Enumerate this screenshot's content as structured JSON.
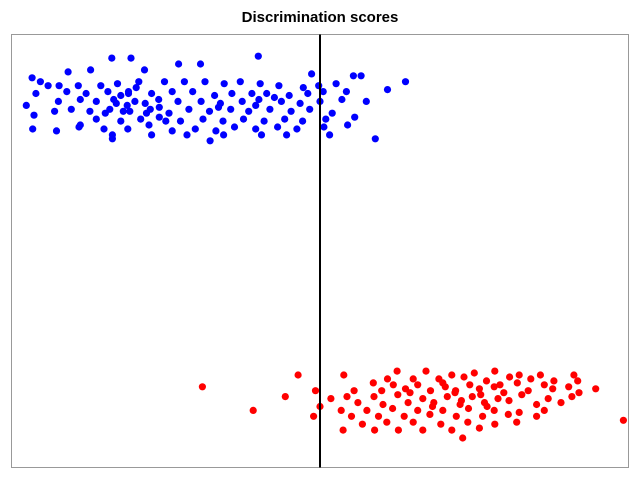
{
  "chart_data": {
    "type": "scatter",
    "title": "Discrimination scores",
    "xlabel": "",
    "ylabel": "",
    "grid": false,
    "legend": "none",
    "xlim": [
      -4.8,
      4.8
    ],
    "ylim": [
      -1.1,
      1.1
    ],
    "reference_line": {
      "x": 0.0,
      "color": "#000000"
    },
    "series": [
      {
        "color": "#0000ff",
        "points": [
          {
            "x": -3.24,
            "y": 0.98
          },
          {
            "x": -2.94,
            "y": 0.98
          },
          {
            "x": -0.96,
            "y": 0.99
          },
          {
            "x": -2.2,
            "y": 0.95
          },
          {
            "x": -1.86,
            "y": 0.95
          },
          {
            "x": -3.57,
            "y": 0.92
          },
          {
            "x": -4.48,
            "y": 0.88
          },
          {
            "x": -3.92,
            "y": 0.91
          },
          {
            "x": -2.73,
            "y": 0.92
          },
          {
            "x": -0.13,
            "y": 0.9
          },
          {
            "x": 0.52,
            "y": 0.89
          },
          {
            "x": 0.64,
            "y": 0.89
          },
          {
            "x": 1.33,
            "y": 0.86
          },
          {
            "x": -4.35,
            "y": 0.86
          },
          {
            "x": -4.23,
            "y": 0.84
          },
          {
            "x": -4.06,
            "y": 0.84
          },
          {
            "x": -3.76,
            "y": 0.84
          },
          {
            "x": -3.41,
            "y": 0.84
          },
          {
            "x": -3.15,
            "y": 0.85
          },
          {
            "x": -2.82,
            "y": 0.86
          },
          {
            "x": -2.42,
            "y": 0.86
          },
          {
            "x": -2.11,
            "y": 0.86
          },
          {
            "x": -1.79,
            "y": 0.86
          },
          {
            "x": -1.49,
            "y": 0.85
          },
          {
            "x": -1.24,
            "y": 0.86
          },
          {
            "x": -0.93,
            "y": 0.85
          },
          {
            "x": -0.64,
            "y": 0.84
          },
          {
            "x": -0.26,
            "y": 0.83
          },
          {
            "x": -0.02,
            "y": 0.84
          },
          {
            "x": 0.25,
            "y": 0.85
          },
          {
            "x": -4.42,
            "y": 0.8
          },
          {
            "x": -3.94,
            "y": 0.81
          },
          {
            "x": -3.64,
            "y": 0.8
          },
          {
            "x": -3.3,
            "y": 0.81
          },
          {
            "x": -2.98,
            "y": 0.8
          },
          {
            "x": -2.62,
            "y": 0.8
          },
          {
            "x": -2.3,
            "y": 0.81
          },
          {
            "x": -1.98,
            "y": 0.81
          },
          {
            "x": -1.64,
            "y": 0.79
          },
          {
            "x": -1.37,
            "y": 0.8
          },
          {
            "x": -1.06,
            "y": 0.8
          },
          {
            "x": -0.83,
            "y": 0.8
          },
          {
            "x": -0.48,
            "y": 0.79
          },
          {
            "x": -0.19,
            "y": 0.8
          },
          {
            "x": 0.05,
            "y": 0.81
          },
          {
            "x": 0.41,
            "y": 0.81
          },
          {
            "x": 1.05,
            "y": 0.82
          },
          {
            "x": -4.07,
            "y": 0.76
          },
          {
            "x": -3.73,
            "y": 0.77
          },
          {
            "x": -3.48,
            "y": 0.76
          },
          {
            "x": -3.17,
            "y": 0.75
          },
          {
            "x": -2.88,
            "y": 0.76
          },
          {
            "x": -2.51,
            "y": 0.77
          },
          {
            "x": -2.21,
            "y": 0.76
          },
          {
            "x": -1.85,
            "y": 0.76
          },
          {
            "x": -1.55,
            "y": 0.75
          },
          {
            "x": -1.21,
            "y": 0.76
          },
          {
            "x": -0.95,
            "y": 0.77
          },
          {
            "x": -0.6,
            "y": 0.76
          },
          {
            "x": -0.31,
            "y": 0.75
          },
          {
            "x": 0.0,
            "y": 0.76
          },
          {
            "x": 0.34,
            "y": 0.77
          },
          {
            "x": 0.72,
            "y": 0.76
          },
          {
            "x": -3.87,
            "y": 0.72
          },
          {
            "x": -3.58,
            "y": 0.71
          },
          {
            "x": -3.27,
            "y": 0.72
          },
          {
            "x": -2.96,
            "y": 0.71
          },
          {
            "x": -2.64,
            "y": 0.72
          },
          {
            "x": -2.35,
            "y": 0.7
          },
          {
            "x": -2.04,
            "y": 0.72
          },
          {
            "x": -1.72,
            "y": 0.71
          },
          {
            "x": -1.39,
            "y": 0.72
          },
          {
            "x": -1.11,
            "y": 0.71
          },
          {
            "x": -0.78,
            "y": 0.72
          },
          {
            "x": -0.45,
            "y": 0.71
          },
          {
            "x": -0.16,
            "y": 0.72
          },
          {
            "x": 0.19,
            "y": 0.7
          },
          {
            "x": -4.45,
            "y": 0.69
          },
          {
            "x": -3.48,
            "y": 0.67
          },
          {
            "x": -3.1,
            "y": 0.66
          },
          {
            "x": -2.79,
            "y": 0.67
          },
          {
            "x": -2.5,
            "y": 0.68
          },
          {
            "x": -2.17,
            "y": 0.66
          },
          {
            "x": -1.82,
            "y": 0.67
          },
          {
            "x": -1.51,
            "y": 0.66
          },
          {
            "x": -1.19,
            "y": 0.67
          },
          {
            "x": -0.87,
            "y": 0.66
          },
          {
            "x": -0.55,
            "y": 0.67
          },
          {
            "x": -0.27,
            "y": 0.66
          },
          {
            "x": 0.09,
            "y": 0.67
          },
          {
            "x": 0.54,
            "y": 0.68
          },
          {
            "x": -3.06,
            "y": 0.71
          },
          {
            "x": -2.98,
            "y": 0.81
          },
          {
            "x": -3.21,
            "y": 0.77
          },
          {
            "x": -2.72,
            "y": 0.75
          },
          {
            "x": -3.34,
            "y": 0.7
          },
          {
            "x": -2.86,
            "y": 0.83
          },
          {
            "x": -1.58,
            "y": 0.73
          },
          {
            "x": -1.0,
            "y": 0.74
          },
          {
            "x": -0.71,
            "y": 0.78
          },
          {
            "x": -4.57,
            "y": 0.74
          },
          {
            "x": -4.13,
            "y": 0.71
          },
          {
            "x": -3.73,
            "y": 0.64
          },
          {
            "x": -3.36,
            "y": 0.62
          },
          {
            "x": -2.99,
            "y": 0.62
          },
          {
            "x": -2.66,
            "y": 0.64
          },
          {
            "x": -2.3,
            "y": 0.61
          },
          {
            "x": -1.94,
            "y": 0.62
          },
          {
            "x": -1.62,
            "y": 0.61
          },
          {
            "x": -1.33,
            "y": 0.63
          },
          {
            "x": -1.0,
            "y": 0.62
          },
          {
            "x": -0.66,
            "y": 0.63
          },
          {
            "x": -0.36,
            "y": 0.62
          },
          {
            "x": 0.06,
            "y": 0.63
          },
          {
            "x": 0.43,
            "y": 0.64
          },
          {
            "x": -4.47,
            "y": 0.62
          },
          {
            "x": -3.75,
            "y": 0.63
          },
          {
            "x": -3.23,
            "y": 0.59
          },
          {
            "x": -2.62,
            "y": 0.59
          },
          {
            "x": -2.07,
            "y": 0.59
          },
          {
            "x": -1.5,
            "y": 0.59
          },
          {
            "x": -0.91,
            "y": 0.59
          },
          {
            "x": -0.52,
            "y": 0.59
          },
          {
            "x": 0.15,
            "y": 0.59
          },
          {
            "x": -4.1,
            "y": 0.61
          },
          {
            "x": -1.71,
            "y": 0.56
          },
          {
            "x": 0.86,
            "y": 0.57
          },
          {
            "x": -3.23,
            "y": 0.57
          },
          {
            "x": -2.7,
            "y": 0.7
          },
          {
            "x": -3.1,
            "y": 0.79
          },
          {
            "x": -2.5,
            "y": 0.73
          },
          {
            "x": -3.0,
            "y": 0.74
          },
          {
            "x": -2.4,
            "y": 0.66
          }
        ]
      },
      {
        "color": "#ff0000",
        "points": [
          {
            "x": 1.2,
            "y": -0.61
          },
          {
            "x": 1.65,
            "y": -0.61
          },
          {
            "x": 2.05,
            "y": -0.63
          },
          {
            "x": 2.4,
            "y": -0.62
          },
          {
            "x": 2.72,
            "y": -0.61
          },
          {
            "x": 3.1,
            "y": -0.63
          },
          {
            "x": 3.43,
            "y": -0.63
          },
          {
            "x": 3.95,
            "y": -0.63
          },
          {
            "x": -0.34,
            "y": -0.63
          },
          {
            "x": 0.37,
            "y": -0.63
          },
          {
            "x": 1.05,
            "y": -0.65
          },
          {
            "x": 1.45,
            "y": -0.65
          },
          {
            "x": 1.85,
            "y": -0.65
          },
          {
            "x": 2.24,
            "y": -0.64
          },
          {
            "x": 2.59,
            "y": -0.66
          },
          {
            "x": 2.95,
            "y": -0.64
          },
          {
            "x": 3.28,
            "y": -0.65
          },
          {
            "x": 3.64,
            "y": -0.66
          },
          {
            "x": 4.01,
            "y": -0.66
          },
          {
            "x": 0.83,
            "y": -0.67
          },
          {
            "x": 1.14,
            "y": -0.68
          },
          {
            "x": 1.52,
            "y": -0.68
          },
          {
            "x": 1.91,
            "y": -0.67
          },
          {
            "x": 2.33,
            "y": -0.68
          },
          {
            "x": 2.71,
            "y": -0.69
          },
          {
            "x": 3.07,
            "y": -0.67
          },
          {
            "x": 3.49,
            "y": -0.68
          },
          {
            "x": 3.87,
            "y": -0.69
          },
          {
            "x": -1.83,
            "y": -0.69
          },
          {
            "x": 0.53,
            "y": -0.71
          },
          {
            "x": 0.96,
            "y": -0.71
          },
          {
            "x": 1.33,
            "y": -0.7
          },
          {
            "x": 1.72,
            "y": -0.71
          },
          {
            "x": 2.11,
            "y": -0.71
          },
          {
            "x": 2.48,
            "y": -0.7
          },
          {
            "x": 2.86,
            "y": -0.72
          },
          {
            "x": 3.24,
            "y": -0.71
          },
          {
            "x": 3.62,
            "y": -0.7
          },
          {
            "x": 4.03,
            "y": -0.72
          },
          {
            "x": 4.29,
            "y": -0.7
          },
          {
            "x": -0.07,
            "y": -0.71
          },
          {
            "x": -0.54,
            "y": -0.74
          },
          {
            "x": 0.42,
            "y": -0.74
          },
          {
            "x": 0.84,
            "y": -0.74
          },
          {
            "x": 1.21,
            "y": -0.73
          },
          {
            "x": 1.6,
            "y": -0.75
          },
          {
            "x": 1.98,
            "y": -0.74
          },
          {
            "x": 2.37,
            "y": -0.74
          },
          {
            "x": 2.77,
            "y": -0.75
          },
          {
            "x": 3.14,
            "y": -0.73
          },
          {
            "x": 3.55,
            "y": -0.75
          },
          {
            "x": 3.92,
            "y": -0.74
          },
          {
            "x": 0.17,
            "y": -0.75
          },
          {
            "x": 0.59,
            "y": -0.77
          },
          {
            "x": 0.98,
            "y": -0.78
          },
          {
            "x": 1.37,
            "y": -0.77
          },
          {
            "x": 1.77,
            "y": -0.77
          },
          {
            "x": 2.18,
            "y": -0.78
          },
          {
            "x": 2.56,
            "y": -0.77
          },
          {
            "x": 2.94,
            "y": -0.76
          },
          {
            "x": 3.37,
            "y": -0.78
          },
          {
            "x": 3.75,
            "y": -0.77
          },
          {
            "x": 0.0,
            "y": -0.79
          },
          {
            "x": -1.04,
            "y": -0.81
          },
          {
            "x": 0.33,
            "y": -0.81
          },
          {
            "x": 0.73,
            "y": -0.81
          },
          {
            "x": 1.13,
            "y": -0.8
          },
          {
            "x": 1.52,
            "y": -0.81
          },
          {
            "x": 1.91,
            "y": -0.81
          },
          {
            "x": 2.31,
            "y": -0.8
          },
          {
            "x": 2.71,
            "y": -0.81
          },
          {
            "x": 3.1,
            "y": -0.82
          },
          {
            "x": 3.49,
            "y": -0.81
          },
          {
            "x": -0.1,
            "y": -0.84
          },
          {
            "x": 0.49,
            "y": -0.84
          },
          {
            "x": 0.91,
            "y": -0.84
          },
          {
            "x": 1.31,
            "y": -0.84
          },
          {
            "x": 1.71,
            "y": -0.83
          },
          {
            "x": 2.12,
            "y": -0.84
          },
          {
            "x": 2.53,
            "y": -0.84
          },
          {
            "x": 2.93,
            "y": -0.83
          },
          {
            "x": 3.37,
            "y": -0.84
          },
          {
            "x": 0.66,
            "y": -0.88
          },
          {
            "x": 1.04,
            "y": -0.87
          },
          {
            "x": 1.45,
            "y": -0.87
          },
          {
            "x": 1.88,
            "y": -0.88
          },
          {
            "x": 2.3,
            "y": -0.87
          },
          {
            "x": 2.72,
            "y": -0.88
          },
          {
            "x": 3.06,
            "y": -0.87
          },
          {
            "x": 0.85,
            "y": -0.91
          },
          {
            "x": 1.6,
            "y": -0.91
          },
          {
            "x": 2.05,
            "y": -0.91
          },
          {
            "x": 2.48,
            "y": -0.9
          },
          {
            "x": 1.22,
            "y": -0.91
          },
          {
            "x": 0.36,
            "y": -0.91
          },
          {
            "x": 4.72,
            "y": -0.86
          },
          {
            "x": 2.22,
            "y": -0.95
          },
          {
            "x": 1.95,
            "y": -0.69
          },
          {
            "x": 2.5,
            "y": -0.73
          },
          {
            "x": 2.2,
            "y": -0.76
          },
          {
            "x": 2.6,
            "y": -0.79
          },
          {
            "x": 1.4,
            "y": -0.72
          },
          {
            "x": 2.8,
            "y": -0.68
          },
          {
            "x": 1.75,
            "y": -0.79
          },
          {
            "x": 2.1,
            "y": -0.72
          }
        ]
      }
    ]
  }
}
